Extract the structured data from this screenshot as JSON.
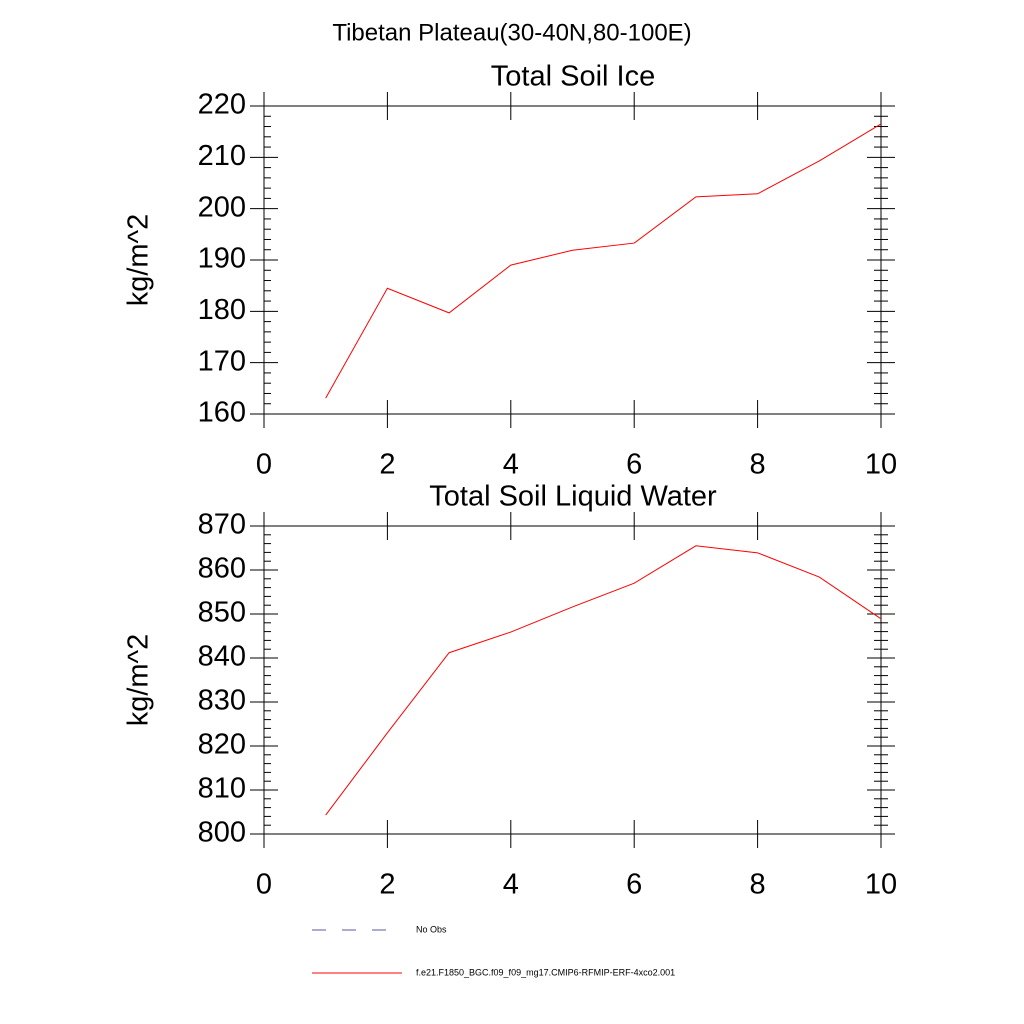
{
  "title": "Tibetan Plateau(30-40N,80-100E)",
  "chart_data": [
    {
      "type": "line",
      "title": "Total Soil Ice",
      "ylabel": "kg/m^2",
      "x": [
        1,
        2,
        3,
        4,
        5,
        6,
        7,
        8,
        9,
        10
      ],
      "series": [
        {
          "color": "#ff0000",
          "values": [
            163.1,
            184.5,
            179.7,
            189.0,
            191.9,
            193.3,
            202.3,
            202.9,
            209.3,
            216.5
          ]
        }
      ],
      "xlim": [
        0,
        10
      ],
      "xticks": [
        0,
        2,
        4,
        6,
        8,
        10
      ],
      "ylim": [
        160,
        220
      ],
      "yticks": [
        160,
        170,
        180,
        190,
        200,
        210,
        220
      ]
    },
    {
      "type": "line",
      "title": "Total Soil Liquid Water",
      "ylabel": "kg/m^2",
      "x": [
        1,
        2,
        3,
        4,
        5,
        6,
        7,
        8,
        9,
        10
      ],
      "series": [
        {
          "color": "#ff0000",
          "values": [
            804.3,
            823.0,
            841.2,
            845.9,
            851.6,
            857.0,
            865.5,
            863.9,
            858.4,
            848.9
          ]
        }
      ],
      "xlim": [
        0,
        10
      ],
      "xticks": [
        0,
        2,
        4,
        6,
        8,
        10
      ],
      "ylim": [
        800,
        870
      ],
      "yticks": [
        800,
        810,
        820,
        830,
        840,
        850,
        860,
        870
      ]
    }
  ],
  "legend": [
    {
      "name": "No Obs",
      "color": "#5a5a9a",
      "dashed": true
    },
    {
      "name": "f.e21.F1850_BGC.f09_f09_mg17.CMIP6-RFMIP-ERF-4xco2.001",
      "color": "#ff0000",
      "dashed": false
    }
  ]
}
